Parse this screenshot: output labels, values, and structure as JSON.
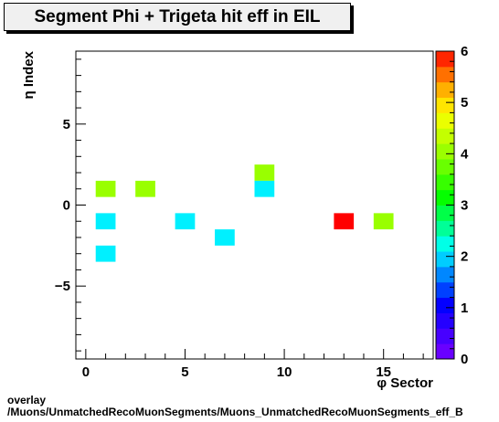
{
  "chart_data": {
    "type": "heatmap",
    "title": "Segment Phi + Trigeta hit eff in EIL",
    "xlabel": "φ Sector",
    "ylabel": "η Index",
    "xlim": [
      -0.5,
      17.5
    ],
    "ylim": [
      -9.5,
      9.5
    ],
    "zlim": [
      0,
      6
    ],
    "x_ticks": [
      0,
      5,
      10,
      15
    ],
    "y_ticks": [
      -5,
      0,
      5
    ],
    "z_ticks": [
      0,
      1,
      2,
      3,
      4,
      5,
      6
    ],
    "cells": [
      {
        "x": 1,
        "y": 1,
        "value": 4
      },
      {
        "x": 3,
        "y": 1,
        "value": 4
      },
      {
        "x": 1,
        "y": -1,
        "value": 2
      },
      {
        "x": 5,
        "y": -1,
        "value": 2
      },
      {
        "x": 1,
        "y": -3,
        "value": 2
      },
      {
        "x": 7,
        "y": -2,
        "value": 2
      },
      {
        "x": 9,
        "y": 2,
        "value": 4
      },
      {
        "x": 9,
        "y": 1,
        "value": 2
      },
      {
        "x": 13,
        "y": -1,
        "value": 6
      },
      {
        "x": 15,
        "y": -1,
        "value": 4
      }
    ]
  },
  "footer": {
    "line1": "overlay",
    "line2": "/Muons/UnmatchedRecoMuonSegments/Muons_UnmatchedRecoMuonSegments_eff_B"
  }
}
